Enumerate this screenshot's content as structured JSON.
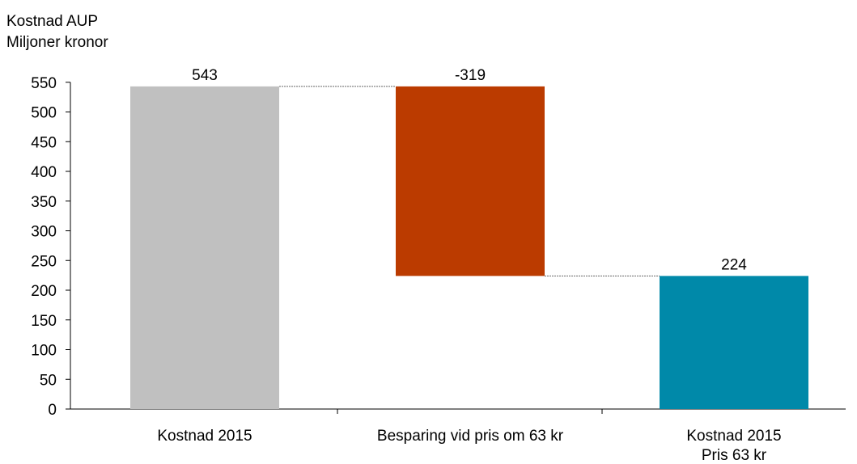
{
  "chart_data": {
    "type": "waterfall",
    "ylabel_lines": [
      "Kostnad AUP",
      "Miljoner kronor"
    ],
    "ylim": [
      0,
      550
    ],
    "yticks": [
      0,
      50,
      100,
      150,
      200,
      250,
      300,
      350,
      400,
      450,
      500,
      550
    ],
    "grid": false,
    "legend": "none",
    "categories": [
      [
        "Kostnad 2015"
      ],
      [
        "Besparing vid pris om 63 kr"
      ],
      [
        "Kostnad 2015",
        "Pris 63 kr"
      ]
    ],
    "bars": [
      {
        "kind": "total",
        "value": 543,
        "label": "543",
        "color": "#c0c0c0"
      },
      {
        "kind": "delta",
        "value": -319,
        "label": "-319",
        "color": "#bb3b00"
      },
      {
        "kind": "total",
        "value": 224,
        "label": "224",
        "color": "#0089a9"
      }
    ]
  }
}
